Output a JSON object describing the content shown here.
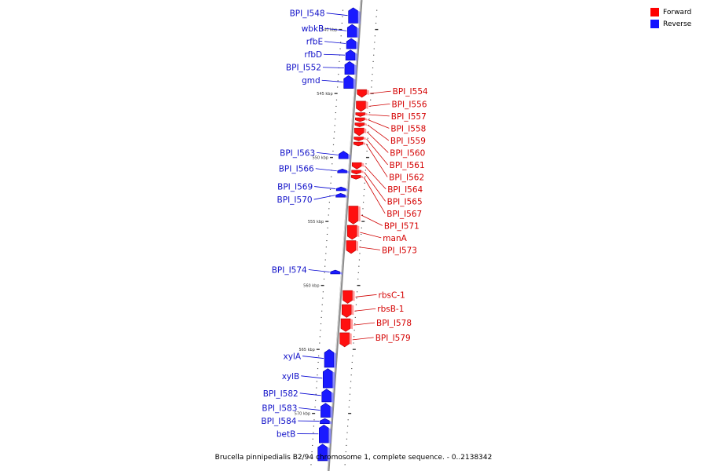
{
  "legend": {
    "forward": {
      "label": "Forward",
      "color": "#ff0000"
    },
    "reverse": {
      "label": "Reverse",
      "color": "#1414ff"
    }
  },
  "caption": "Brucella pinnipedialis B2/94 chromosome 1, complete sequence. - 0..2138342",
  "axis": {
    "tick_labels": [
      {
        "kbp": 540,
        "label": "540 kbp"
      },
      {
        "kbp": 545,
        "label": "545 kbp"
      },
      {
        "kbp": 550,
        "label": "550 kbp"
      },
      {
        "kbp": 555,
        "label": "555 kbp"
      },
      {
        "kbp": 560,
        "label": "560 kbp"
      },
      {
        "kbp": 565,
        "label": "565 kbp"
      },
      {
        "kbp": 570,
        "label": "570 kbp"
      }
    ]
  },
  "genes_reverse": [
    {
      "name": "BPI_I548",
      "start": 538.3,
      "end": 539.5
    },
    {
      "name": "wbkB",
      "start": 539.6,
      "end": 540.6
    },
    {
      "name": "rfbE",
      "start": 540.7,
      "end": 541.5
    },
    {
      "name": "rfbD",
      "start": 541.6,
      "end": 542.4
    },
    {
      "name": "BPI_I552",
      "start": 542.5,
      "end": 543.5
    },
    {
      "name": "gmd",
      "start": 543.6,
      "end": 544.6
    },
    {
      "name": "BPI_I563",
      "start": 549.5,
      "end": 550.1
    },
    {
      "name": "BPI_I566",
      "start": 550.9,
      "end": 551.2
    },
    {
      "name": "BPI_I569",
      "start": 552.3,
      "end": 552.6
    },
    {
      "name": "BPI_I570",
      "start": 552.8,
      "end": 553.1
    },
    {
      "name": "BPI_I574",
      "start": 558.8,
      "end": 559.1
    },
    {
      "name": "xylA",
      "start": 565.0,
      "end": 566.4
    },
    {
      "name": "xylB",
      "start": 566.5,
      "end": 568.0
    },
    {
      "name": "BPI_I582",
      "start": 568.1,
      "end": 569.1
    },
    {
      "name": "BPI_I583",
      "start": 569.2,
      "end": 570.3
    },
    {
      "name": "BPI_I584",
      "start": 570.4,
      "end": 570.8
    },
    {
      "name": "betB",
      "start": 570.9,
      "end": 572.3
    },
    {
      "name": "",
      "start": 572.4,
      "end": 573.7
    }
  ],
  "genes_forward": [
    {
      "name": "BPI_I554",
      "start": 544.7,
      "end": 545.3
    },
    {
      "name": "BPI_I556",
      "start": 545.6,
      "end": 546.4
    },
    {
      "name": "BPI_I557",
      "start": 546.5,
      "end": 546.8
    },
    {
      "name": "BPI_I558",
      "start": 546.9,
      "end": 547.2
    },
    {
      "name": "BPI_I559",
      "start": 547.3,
      "end": 547.6
    },
    {
      "name": "BPI_I560",
      "start": 547.7,
      "end": 548.3
    },
    {
      "name": "BPI_I561",
      "start": 548.4,
      "end": 548.7
    },
    {
      "name": "BPI_I562",
      "start": 548.8,
      "end": 549.1
    },
    {
      "name": "BPI_I564",
      "start": 550.4,
      "end": 550.9
    },
    {
      "name": "BPI_I565",
      "start": 551.0,
      "end": 551.3
    },
    {
      "name": "BPI_I567",
      "start": 551.4,
      "end": 551.7
    },
    {
      "name": "BPI_I571",
      "start": 553.8,
      "end": 555.2
    },
    {
      "name": "manA",
      "start": 555.3,
      "end": 556.4
    },
    {
      "name": "BPI_I573",
      "start": 556.5,
      "end": 557.5
    },
    {
      "name": "rbsC-1",
      "start": 560.4,
      "end": 561.4
    },
    {
      "name": "rbsB-1",
      "start": 561.5,
      "end": 562.5
    },
    {
      "name": "BPI_I578",
      "start": 562.6,
      "end": 563.6
    },
    {
      "name": "BPI_I579",
      "start": 563.7,
      "end": 564.8
    }
  ]
}
